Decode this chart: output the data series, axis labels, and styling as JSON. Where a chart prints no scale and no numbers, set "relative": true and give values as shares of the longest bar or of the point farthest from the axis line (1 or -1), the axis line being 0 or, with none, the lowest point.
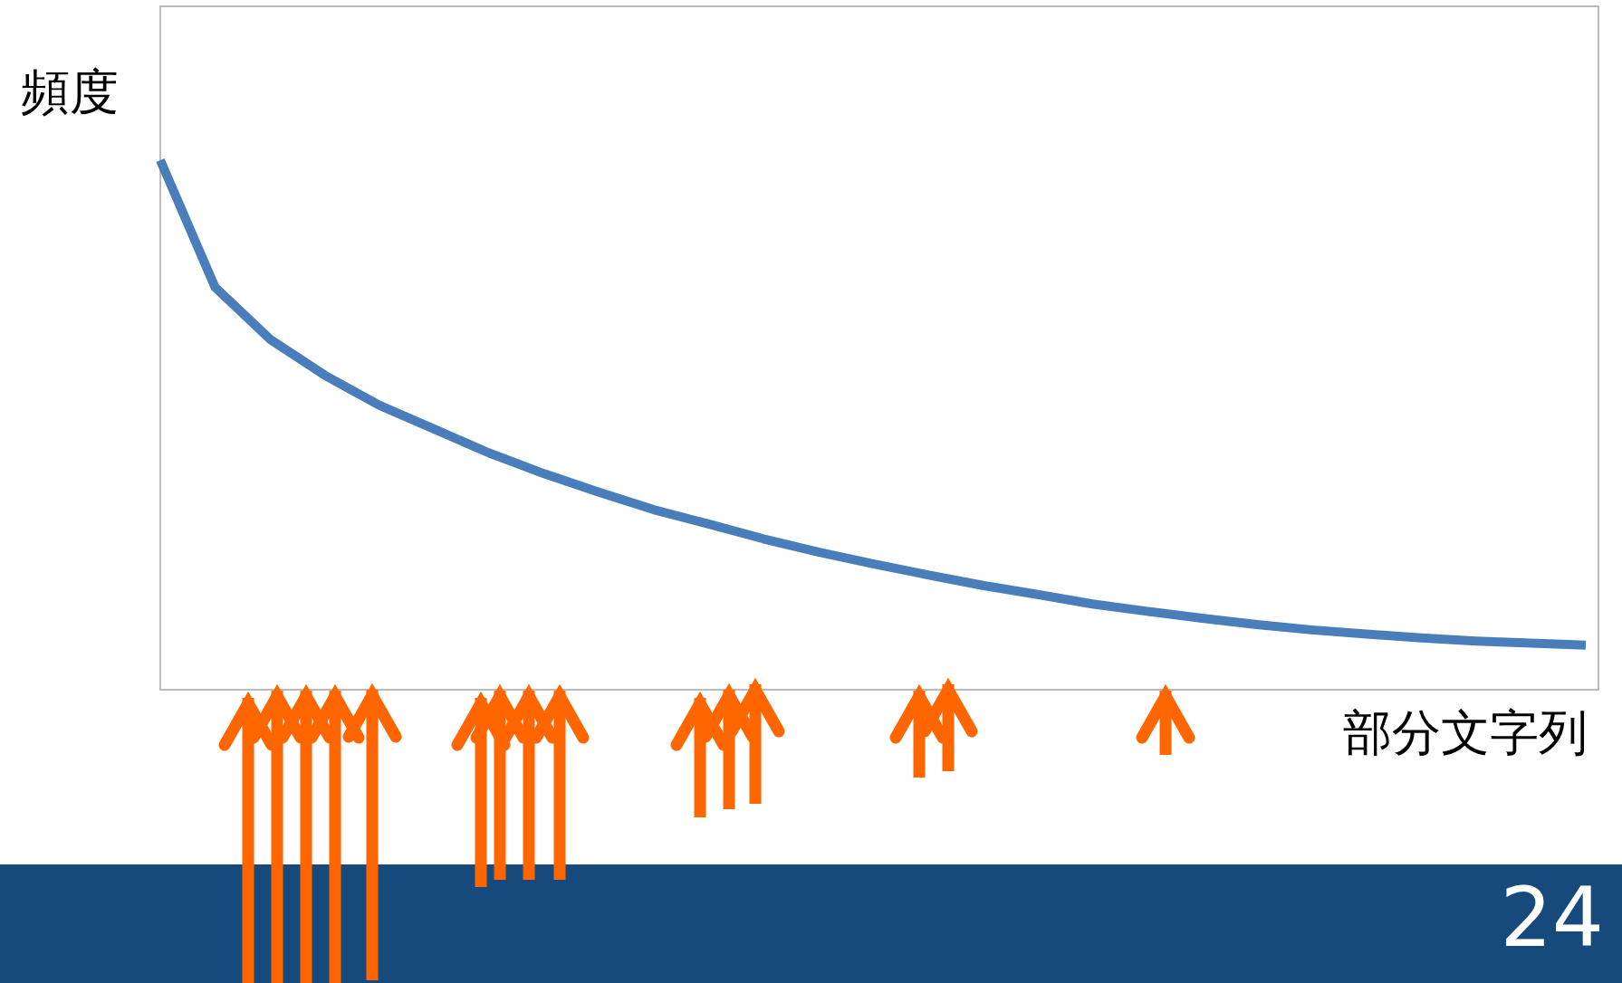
{
  "chart_data": {
    "type": "line",
    "relative": true,
    "xlabel": "部分文字列",
    "ylabel": "頻度",
    "annotations": [
      "24"
    ],
    "categories": [
      null,
      null,
      null,
      null,
      null,
      null,
      null,
      null,
      null,
      null,
      null,
      null,
      null,
      null,
      null,
      null,
      null,
      null,
      null,
      null,
      null,
      null,
      null,
      null,
      null,
      null,
      null
    ],
    "series": [
      {
        "color": "#4a7ebb",
        "values": [
          1.0,
          0.76,
          0.662,
          0.594,
          0.537,
          0.492,
          0.447,
          0.408,
          0.373,
          0.34,
          0.313,
          0.285,
          0.26,
          0.238,
          0.217,
          0.197,
          0.18,
          0.162,
          0.148,
          0.135,
          0.123,
          0.113,
          0.105,
          0.098,
          0.092,
          0.088,
          0.084
        ]
      }
    ]
  }
}
